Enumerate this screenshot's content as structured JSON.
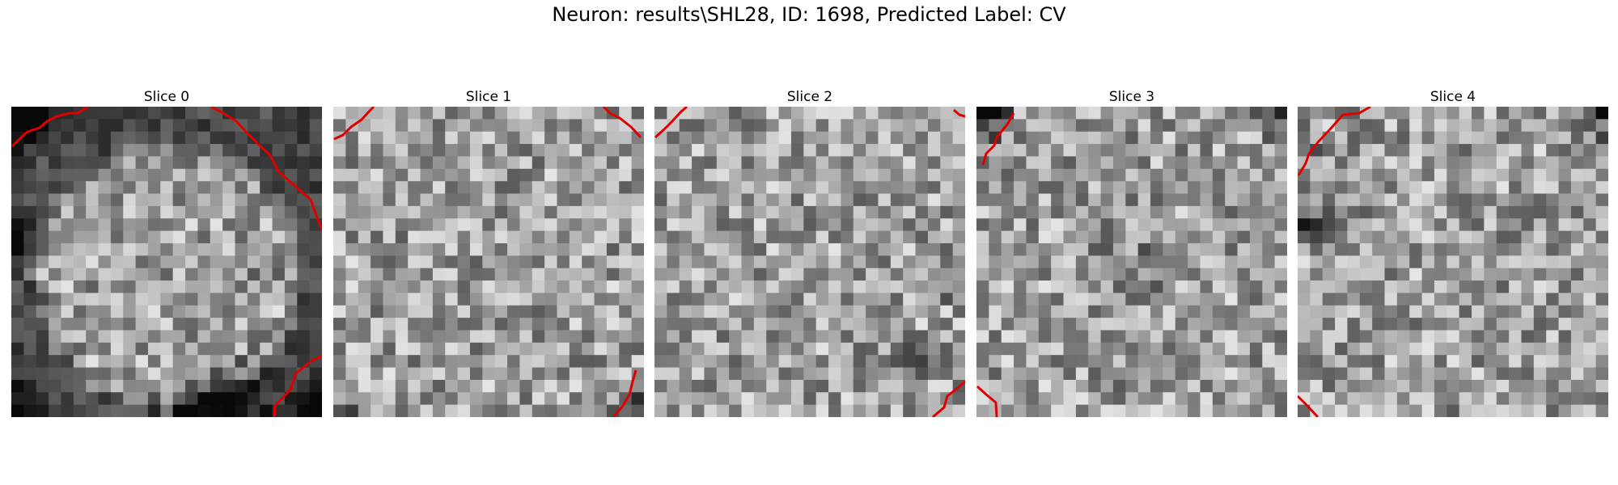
{
  "figure": {
    "title": "Neuron: results\\SHL28, ID: 1698, Predicted Label: CV",
    "contour_color": "#e00000"
  },
  "slices": [
    {
      "title": "Slice 0"
    },
    {
      "title": "Slice 1"
    },
    {
      "title": "Slice 2"
    },
    {
      "title": "Slice 3"
    },
    {
      "title": "Slice 4"
    }
  ]
}
